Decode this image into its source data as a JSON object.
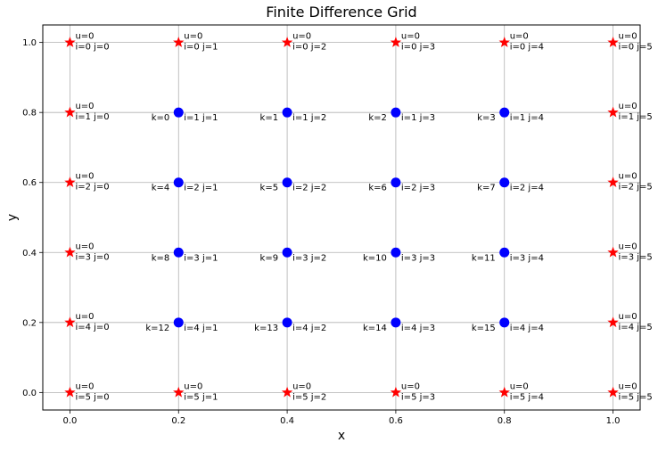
{
  "chart_data": {
    "type": "scatter",
    "title": "Finite Difference Grid",
    "xlabel": "x",
    "ylabel": "y",
    "xlim": [
      -0.05,
      1.05
    ],
    "ylim": [
      -0.05,
      1.05
    ],
    "grid": true,
    "x_ticks": [
      "0.0",
      "0.2",
      "0.4",
      "0.6",
      "0.8",
      "1.0"
    ],
    "y_ticks": [
      "0.0",
      "0.2",
      "0.4",
      "0.6",
      "0.8",
      "1.0"
    ],
    "boundary_points": {
      "marker": "star",
      "color": "#ff0000",
      "points": [
        {
          "x": 0.0,
          "y": 1.0,
          "u": "u=0",
          "label": "i=0 j=0"
        },
        {
          "x": 0.2,
          "y": 1.0,
          "u": "u=0",
          "label": "i=0 j=1"
        },
        {
          "x": 0.4,
          "y": 1.0,
          "u": "u=0",
          "label": "i=0 j=2"
        },
        {
          "x": 0.6,
          "y": 1.0,
          "u": "u=0",
          "label": "i=0 j=3"
        },
        {
          "x": 0.8,
          "y": 1.0,
          "u": "u=0",
          "label": "i=0 j=4"
        },
        {
          "x": 1.0,
          "y": 1.0,
          "u": "u=0",
          "label": "i=0 j=5"
        },
        {
          "x": 0.0,
          "y": 0.8,
          "u": "u=0",
          "label": "i=1 j=0"
        },
        {
          "x": 1.0,
          "y": 0.8,
          "u": "u=0",
          "label": "i=1 j=5"
        },
        {
          "x": 0.0,
          "y": 0.6,
          "u": "u=0",
          "label": "i=2 j=0"
        },
        {
          "x": 1.0,
          "y": 0.6,
          "u": "u=0",
          "label": "i=2 j=5"
        },
        {
          "x": 0.0,
          "y": 0.4,
          "u": "u=0",
          "label": "i=3 j=0"
        },
        {
          "x": 1.0,
          "y": 0.4,
          "u": "u=0",
          "label": "i=3 j=5"
        },
        {
          "x": 0.0,
          "y": 0.2,
          "u": "u=0",
          "label": "i=4 j=0"
        },
        {
          "x": 1.0,
          "y": 0.2,
          "u": "u=0",
          "label": "i=4 j=5"
        },
        {
          "x": 0.0,
          "y": 0.0,
          "u": "u=0",
          "label": "i=5 j=0"
        },
        {
          "x": 0.2,
          "y": 0.0,
          "u": "u=0",
          "label": "i=5 j=1"
        },
        {
          "x": 0.4,
          "y": 0.0,
          "u": "u=0",
          "label": "i=5 j=2"
        },
        {
          "x": 0.6,
          "y": 0.0,
          "u": "u=0",
          "label": "i=5 j=3"
        },
        {
          "x": 0.8,
          "y": 0.0,
          "u": "u=0",
          "label": "i=5 j=4"
        },
        {
          "x": 1.0,
          "y": 0.0,
          "u": "u=0",
          "label": "i=5 j=5"
        }
      ]
    },
    "interior_points": {
      "marker": "circle",
      "color": "#0000ff",
      "points": [
        {
          "x": 0.2,
          "y": 0.8,
          "k": "k=0",
          "label": "i=1 j=1"
        },
        {
          "x": 0.4,
          "y": 0.8,
          "k": "k=1",
          "label": "i=1 j=2"
        },
        {
          "x": 0.6,
          "y": 0.8,
          "k": "k=2",
          "label": "i=1 j=3"
        },
        {
          "x": 0.8,
          "y": 0.8,
          "k": "k=3",
          "label": "i=1 j=4"
        },
        {
          "x": 0.2,
          "y": 0.6,
          "k": "k=4",
          "label": "i=2 j=1"
        },
        {
          "x": 0.4,
          "y": 0.6,
          "k": "k=5",
          "label": "i=2 j=2"
        },
        {
          "x": 0.6,
          "y": 0.6,
          "k": "k=6",
          "label": "i=2 j=3"
        },
        {
          "x": 0.8,
          "y": 0.6,
          "k": "k=7",
          "label": "i=2 j=4"
        },
        {
          "x": 0.2,
          "y": 0.4,
          "k": "k=8",
          "label": "i=3 j=1"
        },
        {
          "x": 0.4,
          "y": 0.4,
          "k": "k=9",
          "label": "i=3 j=2"
        },
        {
          "x": 0.6,
          "y": 0.4,
          "k": "k=10",
          "label": "i=3 j=3"
        },
        {
          "x": 0.8,
          "y": 0.4,
          "k": "k=11",
          "label": "i=3 j=4"
        },
        {
          "x": 0.2,
          "y": 0.2,
          "k": "k=12",
          "label": "i=4 j=1"
        },
        {
          "x": 0.4,
          "y": 0.2,
          "k": "k=13",
          "label": "i=4 j=2"
        },
        {
          "x": 0.6,
          "y": 0.2,
          "k": "k=14",
          "label": "i=4 j=3"
        },
        {
          "x": 0.8,
          "y": 0.2,
          "k": "k=15",
          "label": "i=4 j=4"
        }
      ]
    }
  }
}
